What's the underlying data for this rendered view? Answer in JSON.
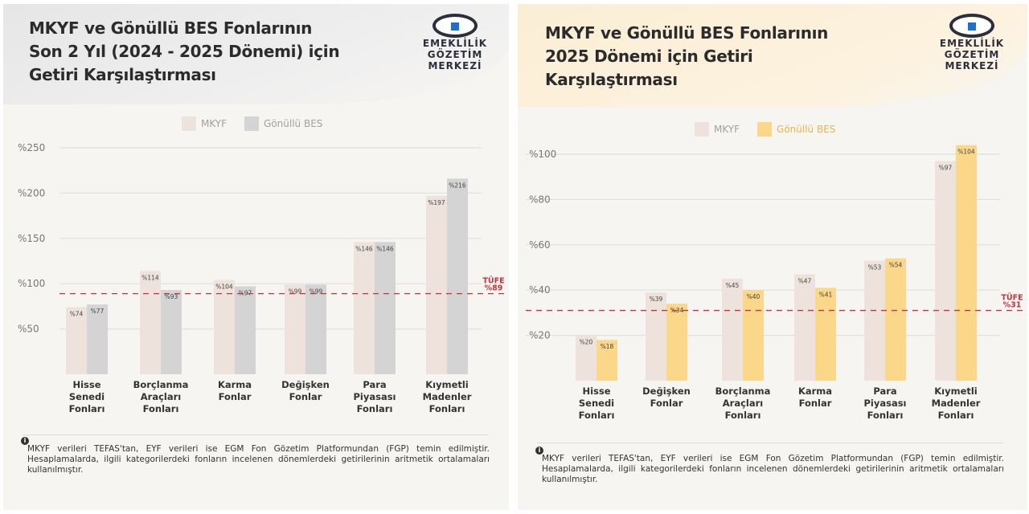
{
  "chart_data": [
    {
      "type": "bar",
      "title": "MKYF ve Gönüllü BES Fonlarının Son 2 Yıl (2024 - 2025 Dönemi) için Getiri Karşılaştırması",
      "title_lines": [
        "MKYF ve Gönüllü BES Fonlarının",
        "Son 2 Yıl (2024 - 2025 Dönemi) için",
        "Getiri Karşılaştırması"
      ],
      "categories": [
        [
          "Hisse",
          "Senedi",
          "Fonları"
        ],
        [
          "Borçlanma",
          "Araçları",
          "Fonları"
        ],
        [
          "Karma",
          "Fonlar"
        ],
        [
          "Değişken",
          "Fonlar"
        ],
        [
          "Para",
          "Piyasası",
          "Fonları"
        ],
        [
          "Kıymetli",
          "Madenler",
          "Fonları"
        ]
      ],
      "series": [
        {
          "name": "MKYF",
          "color": "#ede3dc",
          "values": [
            74,
            114,
            104,
            99,
            146,
            197
          ],
          "labels": [
            "%74",
            "%114",
            "%104",
            "%99",
            "%146",
            "%197"
          ]
        },
        {
          "name": "Gönüllü BES",
          "color": "#d4d4d4",
          "values": [
            77,
            93,
            97,
            99,
            146,
            216
          ],
          "labels": [
            "%77",
            "%93",
            "%97",
            "%99",
            "%146",
            "%216"
          ]
        }
      ],
      "yticks": [
        50,
        100,
        150,
        200,
        250
      ],
      "ytick_labels": [
        "%50",
        "%100",
        "%150",
        "%200",
        "%250"
      ],
      "ylim": [
        0,
        250
      ],
      "reference_line": {
        "name": "TÜFE",
        "value": 89,
        "label": "%89",
        "color": "#c8323c"
      },
      "grid": true,
      "legend": "top-center"
    },
    {
      "type": "bar",
      "title": "MKYF ve Gönüllü BES Fonlarının 2025 Dönemi için Getiri Karşılaştırması",
      "title_lines": [
        "MKYF ve Gönüllü BES Fonlarının",
        "2025 Dönemi için Getiri",
        "Karşılaştırması"
      ],
      "categories": [
        [
          "Hisse",
          "Senedi",
          "Fonları"
        ],
        [
          "Değişken",
          "Fonlar"
        ],
        [
          "Borçlanma",
          "Araçları",
          "Fonları"
        ],
        [
          "Karma",
          "Fonlar"
        ],
        [
          "Para",
          "Piyasası",
          "Fonları"
        ],
        [
          "Kıymetli",
          "Madenler",
          "Fonları"
        ]
      ],
      "series": [
        {
          "name": "MKYF",
          "color": "#ede3dc",
          "values": [
            20,
            39,
            45,
            47,
            53,
            97
          ],
          "labels": [
            "%20",
            "%39",
            "%45",
            "%47",
            "%53",
            "%97"
          ]
        },
        {
          "name": "Gönüllü BES",
          "color": "#fbd78a",
          "values": [
            18,
            34,
            40,
            41,
            54,
            104
          ],
          "labels": [
            "%18",
            "%34",
            "%40",
            "%41",
            "%54",
            "%104"
          ]
        }
      ],
      "yticks": [
        20,
        40,
        60,
        80,
        100
      ],
      "ytick_labels": [
        "%20",
        "%40",
        "%60",
        "%80",
        "%100"
      ],
      "ylim": [
        0,
        100
      ],
      "reference_line": {
        "name": "TÜFE",
        "value": 31,
        "label": "%31",
        "color": "#c8323c"
      },
      "grid": true,
      "legend": "top-center"
    }
  ],
  "logo": {
    "lines": [
      "EMEKLİLİK",
      "GÖZETİM",
      "MERKEZİ"
    ]
  },
  "footnote": {
    "icon": "info-icon",
    "icon_glyph": "i",
    "text": "MKYF verileri TEFAS'tan, EYF verileri ise EGM Fon Gözetim Platformundan (FGP) temin edilmiştir. Hesaplamalarda, ilgili kategorilerdeki fonların incelenen dönemlerdeki getirilerinin aritmetik ortalamaları kullanılmıştır."
  }
}
